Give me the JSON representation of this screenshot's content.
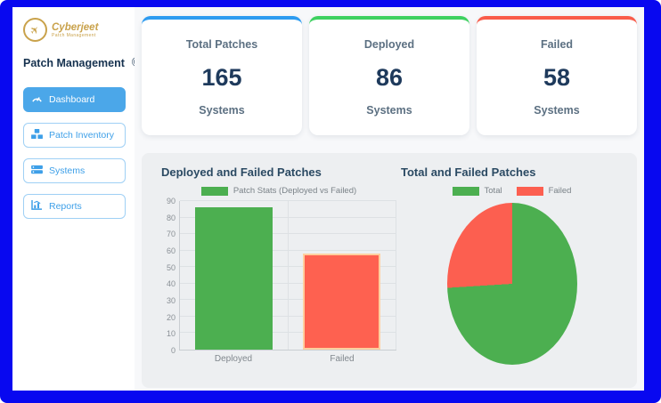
{
  "frame": {
    "border_color": "#0808f0"
  },
  "sidebar": {
    "logo": {
      "brand": "Cyberjeet",
      "tagline": "Patch Management"
    },
    "title": "Patch Management",
    "nav": [
      {
        "label": "Dashboard",
        "icon": "gauge-icon",
        "active": true
      },
      {
        "label": "Patch Inventory",
        "icon": "boxes-icon",
        "active": false
      },
      {
        "label": "Systems",
        "icon": "server-icon",
        "active": false
      },
      {
        "label": "Reports",
        "icon": "bar-chart-icon",
        "active": false
      }
    ]
  },
  "cards": [
    {
      "title": "Total Patches",
      "value": "165",
      "unit": "Systems",
      "accent": "#2d9bf0"
    },
    {
      "title": "Deployed",
      "value": "86",
      "unit": "Systems",
      "accent": "#3ed160"
    },
    {
      "title": "Failed",
      "value": "58",
      "unit": "Systems",
      "accent": "#f95c4a"
    }
  ],
  "chart_data": [
    {
      "type": "bar",
      "title": "Deployed and Failed Patches",
      "categories": [
        "Deployed",
        "Failed"
      ],
      "values": [
        86,
        58
      ],
      "colors": [
        "#4caf50",
        "#fe6150"
      ],
      "border_colors": [
        "#4caf50",
        "#ffcf9e"
      ],
      "legend": [
        {
          "label": "Patch Stats (Deployed vs Failed)",
          "color": "#4caf50"
        }
      ],
      "legend_position": "top",
      "xlabel": "",
      "ylabel": "",
      "ylim": [
        0,
        90
      ],
      "ytick_step": 10,
      "grid": true
    },
    {
      "type": "pie",
      "title": "Total and Failed Patches",
      "labels": [
        "Total",
        "Failed"
      ],
      "values": [
        165,
        58
      ],
      "colors": [
        "#4caf50",
        "#fc5f50"
      ],
      "legend_position": "top",
      "start_angle_deg": 0,
      "direction": "clockwise"
    }
  ]
}
